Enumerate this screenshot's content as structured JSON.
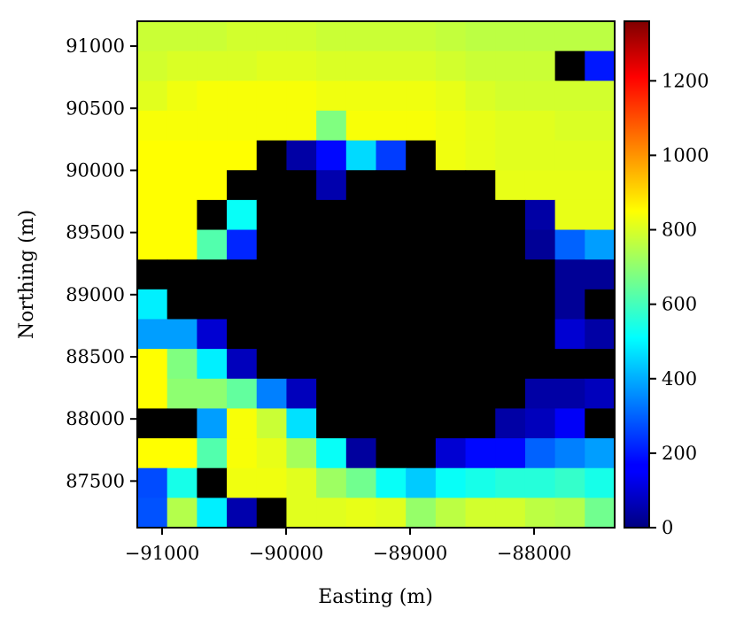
{
  "chart_data": {
    "type": "heatmap",
    "title": "",
    "xlabel": "Easting (m)",
    "ylabel": "Northing (m)",
    "x_ticks": [
      "−91000",
      "−90000",
      "−89000",
      "−88000"
    ],
    "x_tick_values": [
      -91000,
      -90000,
      -89000,
      -88000
    ],
    "y_ticks": [
      "87500",
      "88000",
      "88500",
      "89000",
      "89500",
      "90000",
      "90500",
      "91000"
    ],
    "y_tick_values": [
      87500,
      88000,
      88500,
      89000,
      89500,
      90000,
      90500,
      91000
    ],
    "xlim": [
      -91200,
      -87350
    ],
    "ylim": [
      87125,
      91200
    ],
    "colormap": "jet",
    "grid": false,
    "colorbar": {
      "ticks": [
        "0",
        "200",
        "400",
        "600",
        "800",
        "1000",
        "1200"
      ],
      "tick_values": [
        0,
        200,
        400,
        600,
        800,
        1000,
        1200
      ],
      "range": [
        0,
        1360
      ],
      "position": "right"
    },
    "cell_size_m": 240,
    "values_rows_top_to_bottom": [
      [
        780,
        780,
        780,
        790,
        790,
        790,
        780,
        780,
        780,
        780,
        770,
        760,
        760,
        760,
        760,
        760
      ],
      [
        790,
        800,
        800,
        800,
        810,
        810,
        800,
        800,
        800,
        800,
        790,
        780,
        780,
        780,
        0,
        200
      ],
      [
        810,
        830,
        840,
        840,
        840,
        840,
        830,
        830,
        830,
        830,
        820,
        800,
        790,
        790,
        790,
        790
      ],
      [
        840,
        840,
        840,
        840,
        840,
        840,
        680,
        840,
        840,
        840,
        830,
        820,
        810,
        810,
        800,
        800
      ],
      [
        850,
        850,
        850,
        850,
        0,
        50,
        180,
        460,
        250,
        0,
        830,
        820,
        810,
        810,
        810,
        810
      ],
      [
        850,
        850,
        850,
        0,
        0,
        0,
        60,
        0,
        0,
        0,
        0,
        0,
        820,
        820,
        820,
        820
      ],
      [
        850,
        850,
        0,
        520,
        0,
        0,
        0,
        0,
        0,
        0,
        0,
        0,
        0,
        50,
        820,
        820
      ],
      [
        850,
        850,
        620,
        220,
        0,
        0,
        0,
        0,
        0,
        0,
        0,
        0,
        0,
        30,
        300,
        380
      ],
      [
        0,
        0,
        0,
        0,
        0,
        0,
        0,
        0,
        0,
        0,
        0,
        0,
        0,
        0,
        30,
        30
      ],
      [
        490,
        0,
        0,
        0,
        0,
        0,
        0,
        0,
        0,
        0,
        0,
        0,
        0,
        0,
        30,
        0
      ],
      [
        380,
        380,
        110,
        0,
        0,
        0,
        0,
        0,
        0,
        0,
        0,
        0,
        0,
        0,
        110,
        50
      ],
      [
        850,
        680,
        490,
        80,
        0,
        0,
        0,
        0,
        0,
        0,
        0,
        0,
        0,
        0,
        0,
        0
      ],
      [
        850,
        700,
        700,
        640,
        340,
        80,
        0,
        0,
        0,
        0,
        0,
        0,
        0,
        50,
        50,
        80
      ],
      [
        0,
        0,
        380,
        840,
        780,
        470,
        0,
        0,
        0,
        0,
        0,
        0,
        50,
        80,
        160,
        0
      ],
      [
        850,
        850,
        620,
        840,
        820,
        730,
        520,
        40,
        0,
        0,
        110,
        180,
        180,
        300,
        340,
        380
      ],
      [
        270,
        540,
        0,
        830,
        830,
        810,
        720,
        660,
        520,
        440,
        520,
        540,
        560,
        560,
        580,
        540
      ],
      [
        280,
        750,
        490,
        60,
        0,
        810,
        810,
        820,
        810,
        710,
        760,
        790,
        790,
        760,
        750,
        660
      ]
    ]
  }
}
